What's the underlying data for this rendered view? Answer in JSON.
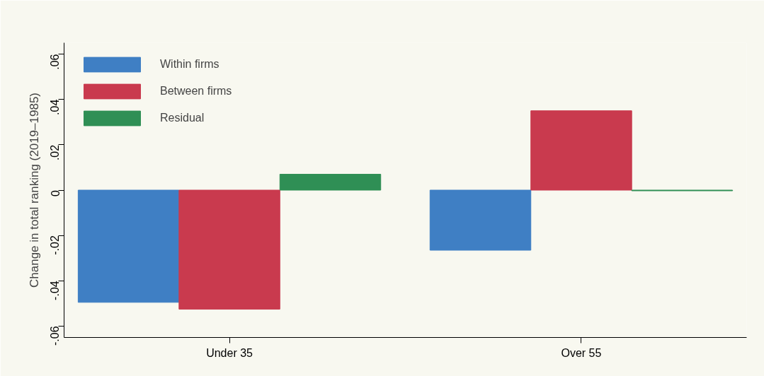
{
  "chart_data": {
    "type": "bar",
    "ylabel": "Change in total ranking (2019–1985)",
    "categories": [
      "Under 35",
      "Over 55"
    ],
    "series": [
      {
        "name": "Within firms",
        "color": "#3f7fc4",
        "values": [
          -0.0495,
          -0.0265
        ]
      },
      {
        "name": "Between firms",
        "color": "#c93a4e",
        "values": [
          -0.0525,
          0.035
        ]
      },
      {
        "name": "Residual",
        "color": "#2f8f55",
        "values": [
          0.007,
          -0.0003
        ]
      }
    ],
    "ylim": [
      -0.065,
      0.065
    ],
    "yticks": [
      {
        "value": -0.06,
        "label": "-.06"
      },
      {
        "value": -0.04,
        "label": "-.04"
      },
      {
        "value": -0.02,
        "label": "-.02"
      },
      0,
      {
        "value": 0.02,
        "label": ".02"
      },
      {
        "value": 0.04,
        "label": ".04"
      },
      {
        "value": 0.06,
        "label": ".06"
      }
    ],
    "grid": false,
    "legend": "top left"
  }
}
